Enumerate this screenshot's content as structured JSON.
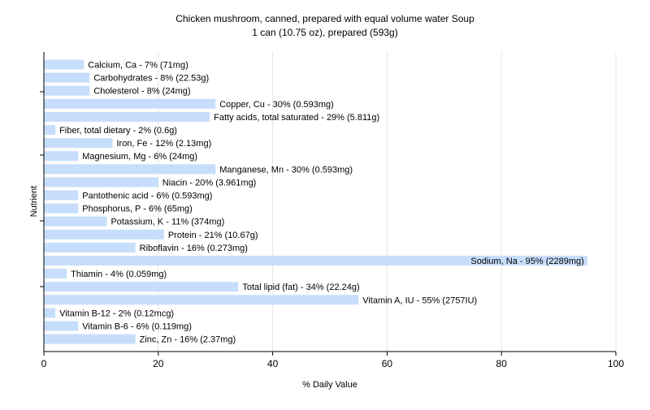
{
  "chart_data": {
    "type": "bar",
    "orientation": "horizontal",
    "title": "Chicken mushroom, canned, prepared with equal volume water Soup",
    "subtitle": "1 can (10.75 oz), prepared (593g)",
    "xlabel": "% Daily Value",
    "ylabel": "Nutrient",
    "xlim": [
      0,
      100
    ],
    "xticks": [
      "0",
      "20",
      "40",
      "60",
      "80",
      "100"
    ],
    "grid": true,
    "bar_color": "#c6defb",
    "categories": [
      "Calcium, Ca",
      "Carbohydrates",
      "Cholesterol",
      "Copper, Cu",
      "Fatty acids, total saturated",
      "Fiber, total dietary",
      "Iron, Fe",
      "Magnesium, Mg",
      "Manganese, Mn",
      "Niacin",
      "Pantothenic acid",
      "Phosphorus, P",
      "Potassium, K",
      "Protein",
      "Riboflavin",
      "Sodium, Na",
      "Thiamin",
      "Total lipid (fat)",
      "Vitamin A, IU",
      "Vitamin B-12",
      "Vitamin B-6",
      "Zinc, Zn"
    ],
    "values": [
      7,
      8,
      8,
      30,
      29,
      2,
      12,
      6,
      30,
      20,
      6,
      6,
      11,
      21,
      16,
      95,
      4,
      34,
      55,
      2,
      6,
      16
    ],
    "labels": [
      "Calcium, Ca - 7% (71mg)",
      "Carbohydrates - 8% (22.53g)",
      "Cholesterol - 8% (24mg)",
      "Copper, Cu - 30% (0.593mg)",
      "Fatty acids, total saturated - 29% (5.811g)",
      "Fiber, total dietary - 2% (0.6g)",
      "Iron, Fe - 12% (2.13mg)",
      "Magnesium, Mg - 6% (24mg)",
      "Manganese, Mn - 30% (0.593mg)",
      "Niacin - 20% (3.961mg)",
      "Pantothenic acid - 6% (0.593mg)",
      "Phosphorus, P - 6% (65mg)",
      "Potassium, K - 11% (374mg)",
      "Protein - 21% (10.67g)",
      "Riboflavin - 16% (0.273mg)",
      "Sodium, Na - 95% (2289mg)",
      "Thiamin - 4% (0.059mg)",
      "Total lipid (fat) - 34% (22.24g)",
      "Vitamin A, IU - 55% (2757IU)",
      "Vitamin B-12 - 2% (0.12mcg)",
      "Vitamin B-6 - 6% (0.119mg)",
      "Zinc, Zn - 16% (2.37mg)"
    ]
  }
}
